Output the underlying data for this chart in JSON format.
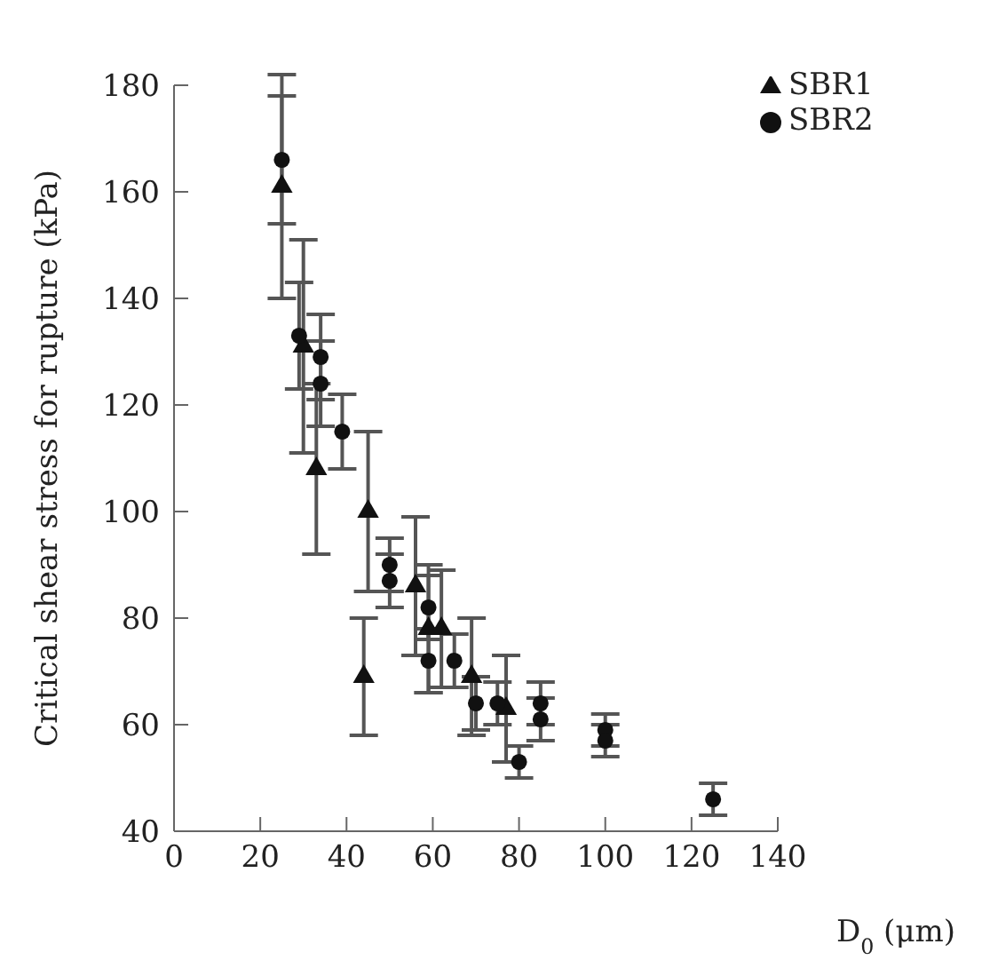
{
  "chart_data": {
    "type": "scatter",
    "xlabel": "D$_{0}$ (μm)",
    "ylabel": "Critical shear stress for rupture (kPa)",
    "xlim": [
      0,
      140
    ],
    "xticks": [
      0,
      20,
      40,
      60,
      80,
      100,
      120,
      140
    ],
    "ylim": [
      40,
      180
    ],
    "yticks": [
      40,
      60,
      80,
      100,
      120,
      140,
      160,
      180
    ],
    "grid": false,
    "legend": "top right",
    "series": [
      {
        "name": "SBR1",
        "color": "#111111",
        "marker": "triangle",
        "x": [
          25,
          30,
          33,
          44,
          45,
          56,
          59,
          62,
          69,
          77
        ],
        "values": [
          161,
          131,
          108,
          69,
          100,
          86,
          78,
          78,
          69,
          63
        ],
        "errors": [
          21,
          20,
          16,
          11,
          15,
          13,
          12,
          11,
          11,
          10
        ]
      },
      {
        "name": "SBR2",
        "color": "#111111",
        "marker": "circle",
        "x": [
          25,
          29,
          34,
          34,
          39,
          50,
          50,
          59,
          59,
          65,
          70,
          75,
          80,
          85,
          85,
          100,
          100,
          125
        ],
        "values": [
          166,
          133,
          129,
          124,
          115,
          90,
          87,
          82,
          72,
          72,
          64,
          64,
          53,
          64,
          61,
          59,
          57,
          46
        ],
        "errors": [
          12,
          10,
          8,
          8,
          7,
          5,
          5,
          6,
          6,
          5,
          5,
          4,
          3,
          4,
          4,
          3,
          3,
          3
        ]
      }
    ]
  }
}
